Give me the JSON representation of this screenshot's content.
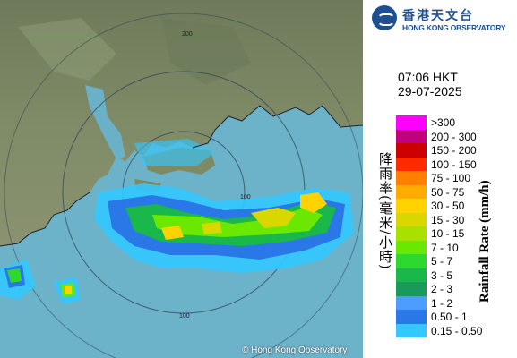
{
  "header": {
    "logo_cn": "香港天文台",
    "logo_en": "HONG KONG OBSERVATORY",
    "time": "07:06 HKT",
    "date": "29-07-2025"
  },
  "legend": {
    "title_cn": "降雨率(毫米/小時)",
    "title_en": "Rainfall Rate (mm/h)",
    "items": [
      {
        "label": ">300",
        "color": "#ff00ff"
      },
      {
        "label": "200 - 300",
        "color": "#c0007f"
      },
      {
        "label": "150 - 200",
        "color": "#cc0000"
      },
      {
        "label": "100 - 150",
        "color": "#ff2a00"
      },
      {
        "label": "75 - 100",
        "color": "#ff8000"
      },
      {
        "label": "50 - 75",
        "color": "#ffab00"
      },
      {
        "label": "30 - 50",
        "color": "#ffd200"
      },
      {
        "label": "15 - 30",
        "color": "#d8d800"
      },
      {
        "label": "10 - 15",
        "color": "#a8e000"
      },
      {
        "label": "7 - 10",
        "color": "#6ae800"
      },
      {
        "label": "5 - 7",
        "color": "#2ed82e"
      },
      {
        "label": "3 - 5",
        "color": "#1ab84a"
      },
      {
        "label": "2 - 3",
        "color": "#1a9a5a"
      },
      {
        "label": "1 - 2",
        "color": "#4d9cff"
      },
      {
        "label": "0.50 - 1",
        "color": "#2a78e8"
      },
      {
        "label": "0.15 - 0.50",
        "color": "#33c8ff"
      }
    ]
  },
  "map": {
    "copyright": "© Hong Kong Observatory",
    "range_labels": [
      "200",
      "100",
      "100"
    ]
  }
}
